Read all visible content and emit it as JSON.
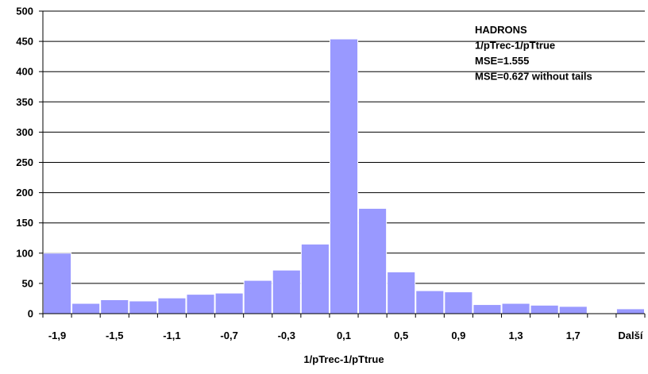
{
  "chart_data": {
    "type": "bar",
    "title": "",
    "xlabel": "1/pTrec-1/pTtrue",
    "ylabel": "",
    "ylim": [
      0,
      500
    ],
    "y_ticks": [
      "0",
      "50",
      "100",
      "150",
      "200",
      "250",
      "300",
      "350",
      "400",
      "450",
      "500"
    ],
    "grid": "horizontal",
    "bar_color": "#9999ff",
    "categories": [
      "-1,9",
      "-1,8",
      "-1,5",
      "-1,3",
      "-1,1",
      "-0,9",
      "-0,7",
      "-0,5",
      "-0,3",
      "-0,1",
      "0,1",
      "0,3",
      "0,5",
      "0,7",
      "0,9",
      "1,1",
      "1,3",
      "1,5",
      "1,7",
      "1,9",
      "Další"
    ],
    "x_tick_labels": [
      "-1,9",
      "",
      "-1,5",
      "",
      "-1,1",
      "",
      "-0,7",
      "",
      "-0,3",
      "",
      "0,1",
      "",
      "0,5",
      "",
      "0,9",
      "",
      "1,3",
      "",
      "1,7",
      "",
      "Další"
    ],
    "values": [
      100,
      17,
      23,
      21,
      26,
      32,
      34,
      55,
      72,
      115,
      454,
      174,
      69,
      38,
      36,
      15,
      17,
      14,
      12,
      1,
      8
    ],
    "annotations": [
      "HADRONS",
      "1/pTrec-1/pTtrue",
      "MSE=1.555",
      "MSE=0.627 without tails"
    ]
  }
}
